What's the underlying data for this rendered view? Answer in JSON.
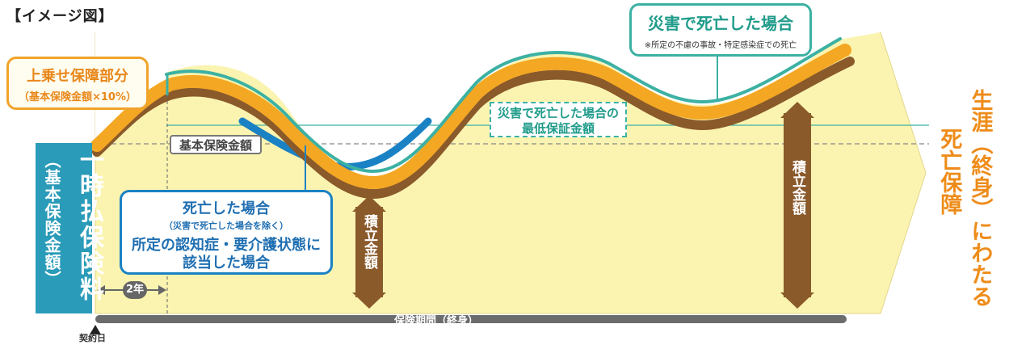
{
  "header": {
    "title": "【イメージ図】"
  },
  "left_bar": {
    "main_label": "一時払保険料",
    "sub_label": "（基本保険金額）"
  },
  "labels": {
    "topup_title": "上乗せ保障部分",
    "topup_sub": "（基本保険金額×10%）",
    "disaster_title": "災害で死亡した場合",
    "disaster_note": "※所定の不慮の事故・特定感染症での死亡",
    "min_guarantee_line1": "災害で死亡した場合の",
    "min_guarantee_line2": "最低保証金額",
    "basic_amount": "基本保険金額",
    "death_title": "死亡した場合",
    "death_sub": "（災害で死亡した場合を除く）",
    "care_line1": "所定の認知症・要介護状態に",
    "care_line2": "該当した場合",
    "accumulated_1": "積立金額",
    "accumulated_2": "積立金額",
    "lifetime_line1": "生涯（終身）にわたる",
    "lifetime_line2": "死亡保障",
    "period": "保険期間（終身）",
    "contract_date": "契約日",
    "two_years": "2年"
  },
  "colors": {
    "background_fill": "#fbf4b0",
    "band_orange": "#f4a723",
    "band_brown": "#8a5a2b",
    "band_blue": "#1a82c4",
    "teal": "#3cb1a3",
    "lump_bar": "#2a9bb8",
    "arrow_brown": "#8a5a2b",
    "accent_orange": "#ee8c1a"
  },
  "icons": {
    "arrow_up": "triangle-up-icon",
    "double_arrow": "double-arrow-icon"
  }
}
